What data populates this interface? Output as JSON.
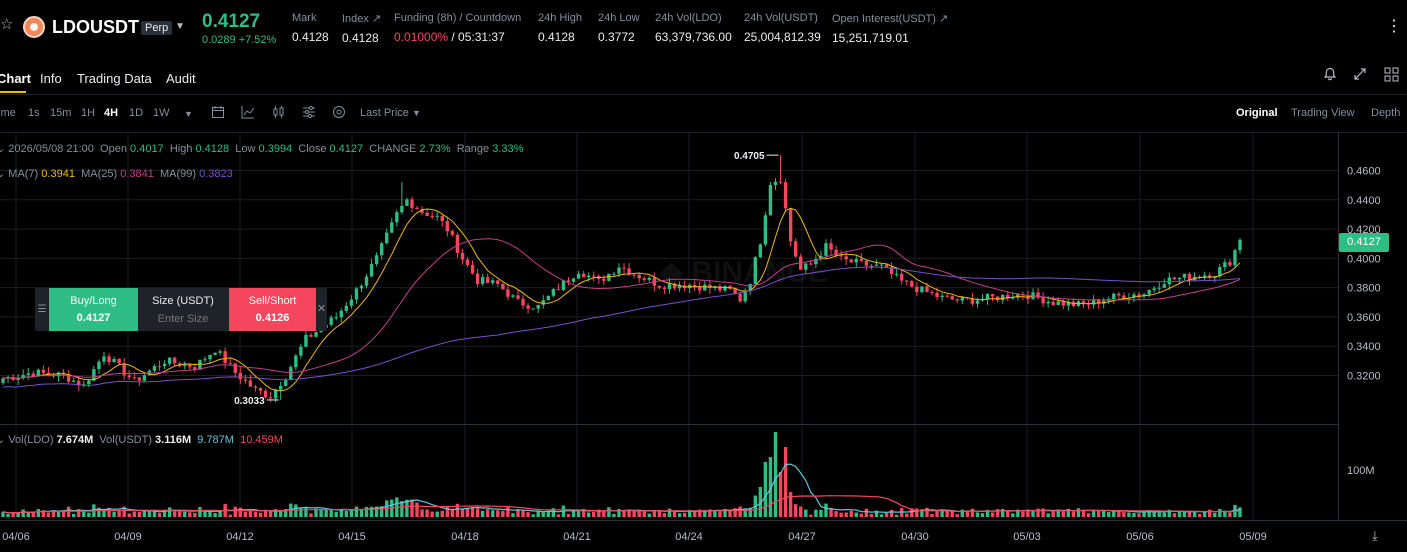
{
  "header": {
    "symbol": "LDOUSDT",
    "badge": "Perp",
    "last_price": "0.4127",
    "change": "0.0289 +7.52%",
    "stats": [
      {
        "label": "Mark",
        "value": "0.4128"
      },
      {
        "label": "Index ↗",
        "value": "0.4128"
      },
      {
        "label": "Funding (8h) / Countdown",
        "value_a": "0.01000%",
        "value_b": " / 05:31:37"
      },
      {
        "label": "24h High",
        "value": "0.4128"
      },
      {
        "label": "24h Low",
        "value": "0.3772"
      },
      {
        "label": "24h Vol(LDO)",
        "value": "63,379,736.00"
      },
      {
        "label": "24h Vol(USDT)",
        "value": "25,004,812.39"
      },
      {
        "label": "Open Interest(USDT) ↗",
        "value": "15,251,719.01"
      }
    ]
  },
  "tabs": [
    "Chart",
    "Info",
    "Trading Data",
    "Audit"
  ],
  "toolbar": {
    "time_label": "ime",
    "intervals": [
      "1s",
      "15m",
      "1H",
      "4H",
      "1D",
      "1W"
    ],
    "active_interval": "4H",
    "price_mode": "Last Price",
    "views": [
      "Original",
      "Trading View",
      "Depth"
    ],
    "active_view": "Original"
  },
  "ohlc": {
    "date": "2026/05/08 21:00",
    "open_label": "Open",
    "open": "0.4017",
    "high_label": "High",
    "high": "0.4128",
    "low_label": "Low",
    "low": "0.3994",
    "close_label": "Close",
    "close": "0.4127",
    "change_label": "CHANGE",
    "change": "2.73%",
    "range_label": "Range",
    "range": "3.33%"
  },
  "ma": {
    "ma7_label": "MA(7)",
    "ma7": "0.3941",
    "ma25_label": "MA(25)",
    "ma25": "0.3841",
    "ma99_label": "MA(99)",
    "ma99": "0.3823"
  },
  "volume": {
    "ldo_label": "Vol(LDO)",
    "ldo": "7.674M",
    "usdt_label": "Vol(USDT)",
    "usdt": "3.116M",
    "ma1": "9.787M",
    "ma2": "10.459M"
  },
  "trade_widget": {
    "buy_label": "Buy/Long",
    "buy_price": "0.4127",
    "size_label": "Size (USDT)",
    "size_placeholder": "Enter Size",
    "sell_label": "Sell/Short",
    "sell_price": "0.4126"
  },
  "colors": {
    "up": "#2ebd85",
    "down": "#f6465d",
    "accent": "#f0b90b",
    "ma7": "#f0b90b",
    "ma25": "#c23f8e",
    "ma99": "#7b4fc9"
  },
  "chart_data": {
    "type": "candlestick",
    "y_axis_ticks": [
      "0.4600",
      "0.4400",
      "0.4200",
      "0.4000",
      "0.3800",
      "0.3600",
      "0.3400",
      "0.3200"
    ],
    "ylim": [
      0.297,
      0.472
    ],
    "x_axis_ticks": [
      "04/06",
      "04/09",
      "04/12",
      "04/15",
      "04/18",
      "04/21",
      "04/24",
      "04/27",
      "04/30",
      "05/03",
      "05/06",
      "05/09"
    ],
    "volume_axis_tick": "100M",
    "high_marker": "0.4705",
    "low_marker": "0.3033",
    "current_price_tag": "0.4127",
    "anchor_points": [
      [
        0,
        0.318
      ],
      [
        6,
        0.322
      ],
      [
        12,
        0.32
      ],
      [
        16,
        0.313
      ],
      [
        20,
        0.335
      ],
      [
        26,
        0.316
      ],
      [
        32,
        0.33
      ],
      [
        38,
        0.326
      ],
      [
        42,
        0.338
      ],
      [
        46,
        0.322
      ],
      [
        50,
        0.31
      ],
      [
        53,
        0.306
      ],
      [
        56,
        0.32
      ],
      [
        60,
        0.345
      ],
      [
        66,
        0.36
      ],
      [
        70,
        0.378
      ],
      [
        74,
        0.4
      ],
      [
        78,
        0.43
      ],
      [
        80,
        0.44
      ],
      [
        83,
        0.432
      ],
      [
        86,
        0.428
      ],
      [
        88,
        0.42
      ],
      [
        91,
        0.4
      ],
      [
        94,
        0.385
      ],
      [
        98,
        0.382
      ],
      [
        102,
        0.37
      ],
      [
        106,
        0.367
      ],
      [
        110,
        0.38
      ],
      [
        114,
        0.392
      ],
      [
        118,
        0.384
      ],
      [
        122,
        0.395
      ],
      [
        126,
        0.388
      ],
      [
        130,
        0.382
      ],
      [
        136,
        0.382
      ],
      [
        140,
        0.38
      ],
      [
        144,
        0.378
      ],
      [
        146,
        0.372
      ],
      [
        148,
        0.385
      ],
      [
        150,
        0.412
      ],
      [
        152,
        0.452
      ],
      [
        154,
        0.455
      ],
      [
        156,
        0.412
      ],
      [
        158,
        0.392
      ],
      [
        160,
        0.396
      ],
      [
        163,
        0.408
      ],
      [
        166,
        0.399
      ],
      [
        170,
        0.396
      ],
      [
        174,
        0.394
      ],
      [
        178,
        0.384
      ],
      [
        182,
        0.378
      ],
      [
        186,
        0.373
      ],
      [
        190,
        0.371
      ],
      [
        196,
        0.373
      ],
      [
        202,
        0.376
      ],
      [
        208,
        0.37
      ],
      [
        214,
        0.368
      ],
      [
        218,
        0.372
      ],
      [
        222,
        0.375
      ],
      [
        226,
        0.376
      ],
      [
        230,
        0.385
      ],
      [
        236,
        0.388
      ],
      [
        240,
        0.39
      ],
      [
        243,
        0.398
      ],
      [
        245,
        0.4127
      ]
    ]
  }
}
